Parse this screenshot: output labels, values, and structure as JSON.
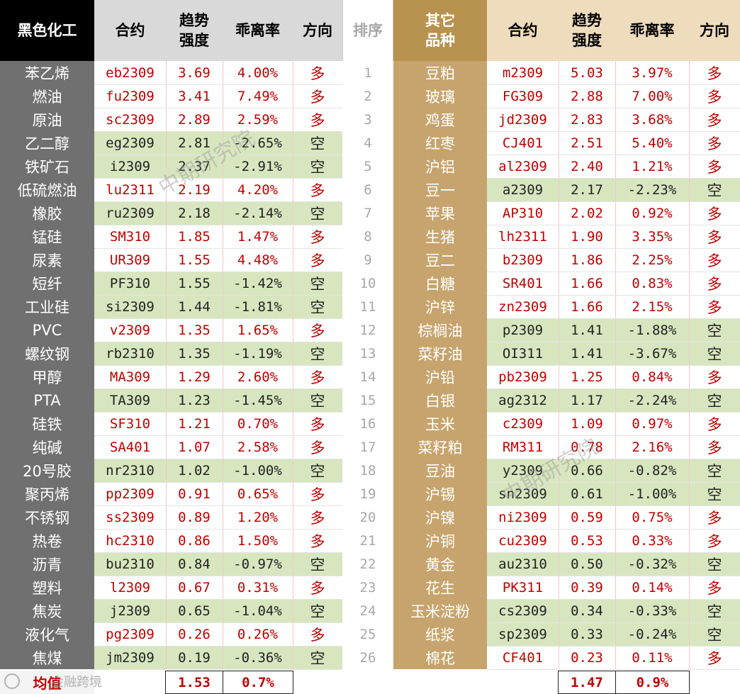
{
  "headers": {
    "left_group": "黑色化工",
    "contract": "合约",
    "trend_line1": "趋势",
    "trend_line2": "强度",
    "deviation": "乖离率",
    "direction": "方向",
    "rank": "排序",
    "right_group_line1": "其它",
    "right_group_line2": "品种"
  },
  "left_rows": [
    {
      "name": "苯乙烯",
      "contract": "eb2309",
      "strength": "3.69",
      "deviation": "4.00%",
      "direction": "多"
    },
    {
      "name": "燃油",
      "contract": "fu2309",
      "strength": "3.41",
      "deviation": "7.49%",
      "direction": "多"
    },
    {
      "name": "原油",
      "contract": "sc2309",
      "strength": "2.89",
      "deviation": "2.59%",
      "direction": "多"
    },
    {
      "name": "乙二醇",
      "contract": "eg2309",
      "strength": "2.81",
      "deviation": "-2.65%",
      "direction": "空"
    },
    {
      "name": "铁矿石",
      "contract": "i2309",
      "strength": "2.37",
      "deviation": "-2.91%",
      "direction": "空"
    },
    {
      "name": "低硫燃油",
      "contract": "lu2311",
      "strength": "2.19",
      "deviation": "4.20%",
      "direction": "多"
    },
    {
      "name": "橡胶",
      "contract": "ru2309",
      "strength": "2.18",
      "deviation": "-2.14%",
      "direction": "空"
    },
    {
      "name": "锰硅",
      "contract": "SM310",
      "strength": "1.85",
      "deviation": "1.47%",
      "direction": "多"
    },
    {
      "name": "尿素",
      "contract": "UR309",
      "strength": "1.55",
      "deviation": "4.48%",
      "direction": "多"
    },
    {
      "name": "短纤",
      "contract": "PF310",
      "strength": "1.55",
      "deviation": "-1.42%",
      "direction": "空"
    },
    {
      "name": "工业硅",
      "contract": "si2309",
      "strength": "1.44",
      "deviation": "-1.81%",
      "direction": "空"
    },
    {
      "name": "PVC",
      "contract": "v2309",
      "strength": "1.35",
      "deviation": "1.65%",
      "direction": "多"
    },
    {
      "name": "螺纹钢",
      "contract": "rb2310",
      "strength": "1.35",
      "deviation": "-1.19%",
      "direction": "空"
    },
    {
      "name": "甲醇",
      "contract": "MA309",
      "strength": "1.29",
      "deviation": "2.60%",
      "direction": "多"
    },
    {
      "name": "PTA",
      "contract": "TA309",
      "strength": "1.23",
      "deviation": "-1.45%",
      "direction": "空"
    },
    {
      "name": "硅铁",
      "contract": "SF310",
      "strength": "1.21",
      "deviation": "0.70%",
      "direction": "多"
    },
    {
      "name": "纯碱",
      "contract": "SA401",
      "strength": "1.07",
      "deviation": "2.58%",
      "direction": "多"
    },
    {
      "name": "20号胶",
      "contract": "nr2310",
      "strength": "1.02",
      "deviation": "-1.00%",
      "direction": "空"
    },
    {
      "name": "聚丙烯",
      "contract": "pp2309",
      "strength": "0.91",
      "deviation": "0.65%",
      "direction": "多"
    },
    {
      "name": "不锈钢",
      "contract": "ss2309",
      "strength": "0.89",
      "deviation": "1.20%",
      "direction": "多"
    },
    {
      "name": "热卷",
      "contract": "hc2310",
      "strength": "0.86",
      "deviation": "1.50%",
      "direction": "多"
    },
    {
      "name": "沥青",
      "contract": "bu2310",
      "strength": "0.84",
      "deviation": "-0.97%",
      "direction": "空"
    },
    {
      "name": "塑料",
      "contract": "l2309",
      "strength": "0.67",
      "deviation": "0.31%",
      "direction": "多"
    },
    {
      "name": "焦炭",
      "contract": "j2309",
      "strength": "0.65",
      "deviation": "-1.04%",
      "direction": "空"
    },
    {
      "name": "液化气",
      "contract": "pg2309",
      "strength": "0.26",
      "deviation": "0.26%",
      "direction": "多"
    },
    {
      "name": "焦煤",
      "contract": "jm2309",
      "strength": "0.19",
      "deviation": "-0.36%",
      "direction": "空"
    }
  ],
  "right_rows": [
    {
      "rank": "1",
      "name": "豆粕",
      "contract": "m2309",
      "strength": "5.03",
      "deviation": "3.97%",
      "direction": "多"
    },
    {
      "rank": "2",
      "name": "玻璃",
      "contract": "FG309",
      "strength": "2.88",
      "deviation": "7.00%",
      "direction": "多"
    },
    {
      "rank": "3",
      "name": "鸡蛋",
      "contract": "jd2309",
      "strength": "2.83",
      "deviation": "3.68%",
      "direction": "多"
    },
    {
      "rank": "4",
      "name": "红枣",
      "contract": "CJ401",
      "strength": "2.51",
      "deviation": "5.40%",
      "direction": "多"
    },
    {
      "rank": "5",
      "name": "沪铝",
      "contract": "al2309",
      "strength": "2.40",
      "deviation": "1.21%",
      "direction": "多"
    },
    {
      "rank": "6",
      "name": "豆一",
      "contract": "a2309",
      "strength": "2.17",
      "deviation": "-2.23%",
      "direction": "空"
    },
    {
      "rank": "7",
      "name": "苹果",
      "contract": "AP310",
      "strength": "2.02",
      "deviation": "0.92%",
      "direction": "多"
    },
    {
      "rank": "8",
      "name": "生猪",
      "contract": "lh2311",
      "strength": "1.90",
      "deviation": "3.35%",
      "direction": "多"
    },
    {
      "rank": "9",
      "name": "豆二",
      "contract": "b2309",
      "strength": "1.86",
      "deviation": "2.25%",
      "direction": "多"
    },
    {
      "rank": "10",
      "name": "白糖",
      "contract": "SR401",
      "strength": "1.66",
      "deviation": "0.83%",
      "direction": "多"
    },
    {
      "rank": "11",
      "name": "沪锌",
      "contract": "zn2309",
      "strength": "1.66",
      "deviation": "2.15%",
      "direction": "多"
    },
    {
      "rank": "12",
      "name": "棕榈油",
      "contract": "p2309",
      "strength": "1.41",
      "deviation": "-1.88%",
      "direction": "空"
    },
    {
      "rank": "13",
      "name": "菜籽油",
      "contract": "OI311",
      "strength": "1.41",
      "deviation": "-3.67%",
      "direction": "空"
    },
    {
      "rank": "14",
      "name": "沪铅",
      "contract": "pb2309",
      "strength": "1.25",
      "deviation": "0.84%",
      "direction": "多"
    },
    {
      "rank": "15",
      "name": "白银",
      "contract": "ag2312",
      "strength": "1.17",
      "deviation": "-2.24%",
      "direction": "空"
    },
    {
      "rank": "16",
      "name": "玉米",
      "contract": "c2309",
      "strength": "1.09",
      "deviation": "0.97%",
      "direction": "多"
    },
    {
      "rank": "17",
      "name": "菜籽粕",
      "contract": "RM311",
      "strength": "0.78",
      "deviation": "2.16%",
      "direction": "多"
    },
    {
      "rank": "18",
      "name": "豆油",
      "contract": "y2309",
      "strength": "0.66",
      "deviation": "-0.82%",
      "direction": "空"
    },
    {
      "rank": "19",
      "name": "沪锡",
      "contract": "sn2309",
      "strength": "0.61",
      "deviation": "-1.00%",
      "direction": "空"
    },
    {
      "rank": "20",
      "name": "沪镍",
      "contract": "ni2309",
      "strength": "0.59",
      "deviation": "0.75%",
      "direction": "多"
    },
    {
      "rank": "21",
      "name": "沪铜",
      "contract": "cu2309",
      "strength": "0.53",
      "deviation": "0.33%",
      "direction": "多"
    },
    {
      "rank": "22",
      "name": "黄金",
      "contract": "au2310",
      "strength": "0.50",
      "deviation": "-0.32%",
      "direction": "空"
    },
    {
      "rank": "23",
      "name": "花生",
      "contract": "PK311",
      "strength": "0.39",
      "deviation": "0.14%",
      "direction": "多"
    },
    {
      "rank": "24",
      "name": "玉米淀粉",
      "contract": "cs2309",
      "strength": "0.34",
      "deviation": "-0.33%",
      "direction": "空"
    },
    {
      "rank": "25",
      "name": "纸浆",
      "contract": "sp2309",
      "strength": "0.33",
      "deviation": "-0.24%",
      "direction": "空"
    },
    {
      "rank": "26",
      "name": "棉花",
      "contract": "CF401",
      "strength": "0.23",
      "deviation": "0.11%",
      "direction": "多"
    }
  ],
  "averages": {
    "label": "均值",
    "left_strength": "1.53",
    "left_deviation": "0.7%",
    "right_strength": "1.47",
    "right_deviation": "0.9%"
  },
  "watermarks": [
    "中期研究院",
    "中期研究院"
  ],
  "logo_watermark": "金融跨境",
  "colors": {
    "long_text": "#c00000",
    "short_text": "#222222",
    "short_row_bg": "#d8e6bf",
    "left_name_bg": "#707070",
    "right_name_bg": "#c7a46d",
    "left_header_bg": "#000000",
    "right_header_bg": "#b8924f",
    "header_bg": "#d9d9d9",
    "right_header_bg_light": "#eedcbc"
  }
}
